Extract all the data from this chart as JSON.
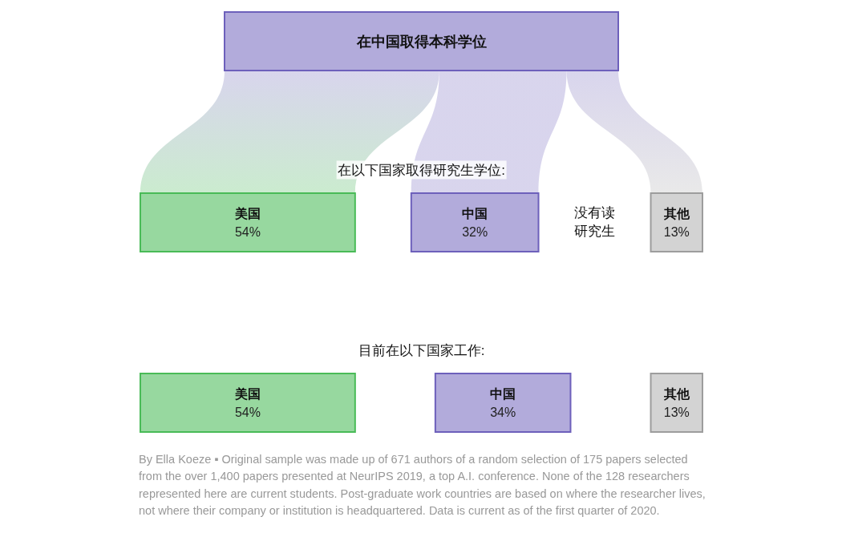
{
  "chart_data": {
    "type": "other",
    "title": "在中国取得本科学位",
    "color": "#b2abdb",
    "categories": [
      "美国",
      "中国",
      "没有读研究生",
      "其他"
    ],
    "series": [
      {
        "name": "在以下国家取得研究生学位:",
        "values": [
          54,
          32,
          null,
          13
        ],
        "value_labels": [
          "54%",
          "32%",
          null,
          "13%"
        ],
        "colors": [
          "#97d89f",
          "#b2abdb",
          null,
          "#d3d3d3"
        ]
      },
      {
        "name": "目前在以下国家工作:",
        "values": [
          54,
          34,
          null,
          13
        ],
        "value_labels": [
          "54%",
          "34%",
          null,
          "13%"
        ],
        "colors": [
          "#97d89f",
          "#b2abdb",
          null,
          "#d3d3d3"
        ]
      }
    ],
    "annotations": [
      "By Ella Koeze ▪ Original sample was made up of 671 authors of a random selection of 175 papers selected from the over 1,400 papers presented at NeurIPS 2019, a top A.I. conference. None of the 128 researchers represented here are current students. Post-graduate work countries are based on where the researcher lives, not where their company or institution is headquartered. Data is current as of the first quarter of 2020."
    ]
  }
}
